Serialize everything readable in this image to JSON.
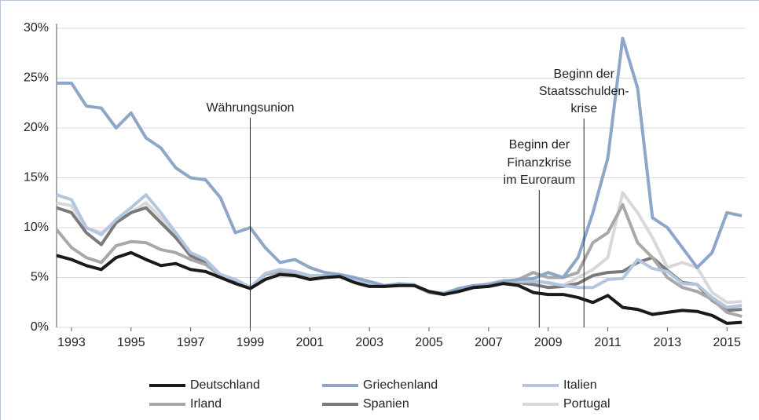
{
  "chart_data": {
    "type": "line",
    "x": [
      1992.5,
      1993,
      1993.5,
      1994,
      1994.5,
      1995,
      1995.5,
      1996,
      1996.5,
      1997,
      1997.5,
      1998,
      1998.5,
      1999,
      1999.5,
      2000,
      2000.5,
      2001,
      2001.5,
      2002,
      2002.5,
      2003,
      2003.5,
      2004,
      2004.5,
      2005,
      2005.5,
      2006,
      2006.5,
      2007,
      2007.5,
      2008,
      2008.5,
      2009,
      2009.5,
      2010,
      2010.5,
      2011,
      2011.5,
      2012,
      2012.5,
      2013,
      2013.5,
      2014,
      2014.5,
      2015,
      2015.5
    ],
    "xlim": [
      1992.5,
      2015.6
    ],
    "xticks": [
      1993,
      1995,
      1997,
      1999,
      2001,
      2003,
      2005,
      2007,
      2009,
      2011,
      2013,
      2015
    ],
    "ylim": [
      0,
      30
    ],
    "yticks": [
      {
        "value": 0,
        "label": "0%"
      },
      {
        "value": 5,
        "label": "5%"
      },
      {
        "value": 10,
        "label": "10%"
      },
      {
        "value": 15,
        "label": "15%"
      },
      {
        "value": 20,
        "label": "20%"
      },
      {
        "value": 25,
        "label": "25%"
      },
      {
        "value": 30,
        "label": "30%"
      }
    ],
    "grid": true,
    "series": [
      {
        "name": "Deutschland",
        "color": "#1a1a1a",
        "values": [
          7.2,
          6.8,
          6.2,
          5.8,
          7,
          7.5,
          6.8,
          6.2,
          6.4,
          5.8,
          5.6,
          5,
          4.4,
          3.9,
          4.8,
          5.3,
          5.2,
          4.8,
          5,
          5.1,
          4.5,
          4.1,
          4.1,
          4.2,
          4.2,
          3.6,
          3.3,
          3.6,
          4,
          4.1,
          4.4,
          4.2,
          3.5,
          3.3,
          3.3,
          3,
          2.5,
          3.2,
          2,
          1.8,
          1.3,
          1.5,
          1.7,
          1.6,
          1.2,
          0.4,
          0.5
        ]
      },
      {
        "name": "Griechenland",
        "color": "#8ea6c9",
        "values": [
          24.5,
          24.5,
          22.2,
          22,
          20,
          21.5,
          19,
          18,
          16,
          15,
          14.8,
          13,
          9.5,
          10,
          8,
          6.5,
          6.8,
          6,
          5.5,
          5.3,
          5,
          4.6,
          4.2,
          4.3,
          4.2,
          3.6,
          3.4,
          3.9,
          4.2,
          4.3,
          4.6,
          4.8,
          4.9,
          5.5,
          5,
          7,
          11.5,
          17,
          29,
          24,
          11,
          10,
          8,
          6,
          7.5,
          11.5,
          11.2
        ]
      },
      {
        "name": "Italien",
        "color": "#b3c6e0",
        "values": [
          13.3,
          12.8,
          10,
          9.3,
          10.8,
          12,
          13.3,
          11.5,
          9.5,
          7.5,
          6.8,
          5.3,
          4.8,
          4,
          5.4,
          5.8,
          5.6,
          5.2,
          5.2,
          5.3,
          4.7,
          4.3,
          4.2,
          4.4,
          4.3,
          3.6,
          3.4,
          3.9,
          4.1,
          4.3,
          4.7,
          4.6,
          4.6,
          4.5,
          4.2,
          4,
          4,
          4.8,
          4.9,
          6.8,
          5.9,
          5.6,
          4.4,
          4.3,
          3,
          2,
          2.2
        ]
      },
      {
        "name": "Irland",
        "color": "#a8a8a8",
        "values": [
          9.8,
          8,
          7,
          6.5,
          8.2,
          8.6,
          8.5,
          7.8,
          7.5,
          6.8,
          6.3,
          5.2,
          4.8,
          4,
          5.3,
          5.6,
          5.5,
          5.1,
          5.2,
          5.2,
          4.6,
          4.2,
          4.1,
          4.3,
          4.2,
          3.5,
          3.3,
          3.8,
          4.1,
          4.3,
          4.6,
          4.8,
          5.5,
          5,
          5,
          5.5,
          8.5,
          9.5,
          12.3,
          8.5,
          7,
          5,
          4,
          3.6,
          2.8,
          1.5,
          1.1
        ]
      },
      {
        "name": "Spanien",
        "color": "#7a7a7a",
        "values": [
          12,
          11.5,
          9.5,
          8.3,
          10.5,
          11.5,
          12,
          10.5,
          9,
          7.2,
          6.5,
          5.1,
          4.7,
          4,
          5.3,
          5.6,
          5.5,
          5.1,
          5.2,
          5.2,
          4.6,
          4.2,
          4.1,
          4.3,
          4.2,
          3.5,
          3.3,
          3.8,
          4.1,
          4.3,
          4.6,
          4.5,
          4.3,
          4,
          4.1,
          4.4,
          5.2,
          5.5,
          5.6,
          6.5,
          7,
          5.7,
          4.5,
          4.3,
          2.7,
          1.7,
          1.8
        ]
      },
      {
        "name": "Portugal",
        "color": "#d8d8d8",
        "values": [
          12.5,
          12.2,
          10,
          9.5,
          10.5,
          11.5,
          12.5,
          11,
          9.3,
          7,
          6.6,
          5.2,
          4.7,
          4,
          5.4,
          5.8,
          5.6,
          5.2,
          5.2,
          5.3,
          4.6,
          4.2,
          4.1,
          4.3,
          4.2,
          3.5,
          3.4,
          3.9,
          4.1,
          4.4,
          4.7,
          4.7,
          4.8,
          4.4,
          4.2,
          5,
          5.8,
          7,
          13.5,
          11.5,
          9,
          6,
          6.5,
          6,
          3.5,
          2.5,
          2.6
        ]
      }
    ],
    "annotations": [
      {
        "x": 1999,
        "lines": [
          "Währungsunion"
        ]
      },
      {
        "x": 2008.7,
        "lines": [
          "Beginn der",
          "Finanzkrise",
          "im Euroraum"
        ]
      },
      {
        "x": 2010.2,
        "lines": [
          "Beginn der",
          "Staatsschulden-",
          "krise"
        ]
      }
    ]
  }
}
